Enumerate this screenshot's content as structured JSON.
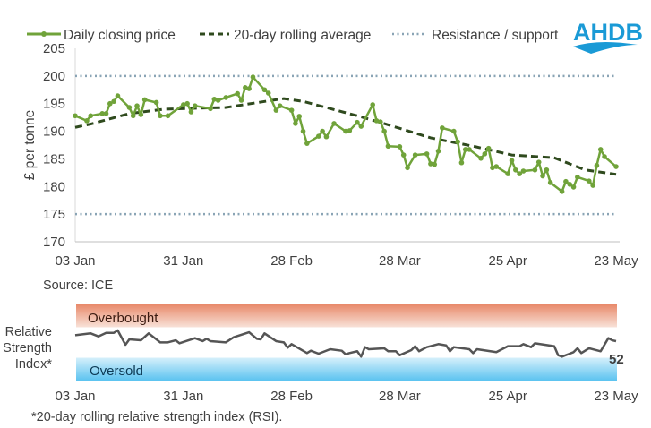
{
  "logo": {
    "text": "AHDB",
    "color": "#1a9ad6"
  },
  "source": "Source: ICE",
  "footnote": "*20-day rolling relative strength index (RSI).",
  "colors": {
    "price": "#70a33a",
    "average": "#2f4a1e",
    "levels": "#8aa4b5",
    "rsi": "#555555",
    "overbought": "#e8896a",
    "oversold": "#5cc3f0"
  },
  "chart_data": [
    {
      "type": "line",
      "ylabel": "£ per tonne",
      "ylim": [
        170,
        205
      ],
      "yticks": [
        "170",
        "175",
        "180",
        "185",
        "190",
        "195",
        "200",
        "205"
      ],
      "xticks": [
        "03 Jan",
        "31 Jan",
        "28 Feb",
        "28 Mar",
        "25 Apr",
        "23 May"
      ],
      "legend": {
        "placement": "top",
        "entries": [
          "Daily closing price",
          "20-day rolling average",
          "Resistance / support"
        ]
      },
      "levels": {
        "resistance": 200,
        "support": 175
      },
      "series": [
        {
          "name": "Daily closing price",
          "style": "line-markers",
          "points": [
            [
              "03 Jan",
              192.8
            ],
            [
              "06 Jan",
              191.9
            ],
            [
              "07 Jan",
              192.8
            ],
            [
              "10 Jan",
              193.2
            ],
            [
              "11 Jan",
              193.2
            ],
            [
              "12 Jan",
              195.0
            ],
            [
              "13 Jan",
              195.4
            ],
            [
              "14 Jan",
              196.4
            ],
            [
              "17 Jan",
              194.3
            ],
            [
              "18 Jan",
              192.8
            ],
            [
              "19 Jan",
              194.6
            ],
            [
              "20 Jan",
              193.0
            ],
            [
              "21 Jan",
              195.7
            ],
            [
              "24 Jan",
              195.2
            ],
            [
              "25 Jan",
              192.8
            ],
            [
              "27 Jan",
              192.8
            ],
            [
              "31 Jan",
              194.8
            ],
            [
              "01 Feb",
              195.0
            ],
            [
              "02 Feb",
              193.5
            ],
            [
              "03 Feb",
              194.6
            ],
            [
              "07 Feb",
              194.1
            ],
            [
              "08 Feb",
              195.8
            ],
            [
              "09 Feb",
              195.6
            ],
            [
              "11 Feb",
              196.1
            ],
            [
              "14 Feb",
              196.8
            ],
            [
              "15 Feb",
              195.6
            ],
            [
              "16 Feb",
              197.9
            ],
            [
              "17 Feb",
              197.7
            ],
            [
              "18 Feb",
              199.8
            ],
            [
              "21 Feb",
              197.5
            ],
            [
              "22 Feb",
              196.9
            ],
            [
              "24 Feb",
              193.8
            ],
            [
              "25 Feb",
              194.6
            ],
            [
              "28 Feb",
              193.8
            ],
            [
              "01 Mar",
              191.4
            ],
            [
              "02 Mar",
              192.7
            ],
            [
              "03 Mar",
              190.0
            ],
            [
              "04 Mar",
              187.8
            ],
            [
              "07 Mar",
              189.1
            ],
            [
              "08 Mar",
              190.0
            ],
            [
              "09 Mar",
              189.0
            ],
            [
              "11 Mar",
              191.4
            ],
            [
              "14 Mar",
              190.0
            ],
            [
              "15 Mar",
              190.1
            ],
            [
              "17 Mar",
              191.6
            ],
            [
              "18 Mar",
              190.9
            ],
            [
              "21 Mar",
              194.8
            ],
            [
              "22 Mar",
              191.9
            ],
            [
              "23 Mar",
              191.7
            ],
            [
              "24 Mar",
              190.0
            ],
            [
              "25 Mar",
              187.3
            ],
            [
              "28 Mar",
              187.2
            ],
            [
              "29 Mar",
              185.7
            ],
            [
              "30 Mar",
              183.4
            ],
            [
              "01 Apr",
              185.7
            ],
            [
              "04 Apr",
              185.9
            ],
            [
              "05 Apr",
              184.1
            ],
            [
              "06 Apr",
              184.0
            ],
            [
              "07 Apr",
              186.4
            ],
            [
              "08 Apr",
              190.6
            ],
            [
              "11 Apr",
              190.0
            ],
            [
              "12 Apr",
              188.1
            ],
            [
              "13 Apr",
              184.3
            ],
            [
              "14 Apr",
              186.7
            ],
            [
              "15 Apr",
              186.7
            ],
            [
              "18 Apr",
              185.1
            ],
            [
              "19 Apr",
              185.9
            ],
            [
              "20 Apr",
              186.9
            ],
            [
              "21 Apr",
              183.4
            ],
            [
              "22 Apr",
              183.6
            ],
            [
              "25 Apr",
              182.3
            ],
            [
              "26 Apr",
              184.7
            ],
            [
              "27 Apr",
              183.0
            ],
            [
              "28 Apr",
              182.3
            ],
            [
              "29 Apr",
              182.8
            ],
            [
              "02 May",
              183.0
            ],
            [
              "03 May",
              184.4
            ],
            [
              "04 May",
              181.9
            ],
            [
              "05 May",
              183.0
            ],
            [
              "06 May",
              180.7
            ],
            [
              "09 May",
              179.1
            ],
            [
              "10 May",
              180.9
            ],
            [
              "11 May",
              180.4
            ],
            [
              "12 May",
              179.9
            ],
            [
              "13 May",
              181.7
            ],
            [
              "16 May",
              181.0
            ],
            [
              "17 May",
              180.2
            ],
            [
              "18 May",
              183.8
            ],
            [
              "19 May",
              186.7
            ],
            [
              "20 May",
              185.4
            ],
            [
              "23 May",
              183.6
            ]
          ]
        },
        {
          "name": "20-day rolling average",
          "style": "dashed",
          "points": [
            [
              "03 Jan",
              190.7
            ],
            [
              "07 Jan",
              191.3
            ],
            [
              "17 Jan",
              193.2
            ],
            [
              "26 Jan",
              194.0
            ],
            [
              "11 Feb",
              194.3
            ],
            [
              "23 Feb",
              195.6
            ],
            [
              "26 Feb",
              195.9
            ],
            [
              "03 Mar",
              195.4
            ],
            [
              "17 Mar",
              192.8
            ],
            [
              "23 Mar",
              191.6
            ],
            [
              "05 Apr",
              188.8
            ],
            [
              "16 Apr",
              187.3
            ],
            [
              "26 Apr",
              185.7
            ],
            [
              "07 May",
              185.2
            ],
            [
              "15 May",
              183.0
            ],
            [
              "23 May",
              182.2
            ]
          ]
        }
      ]
    },
    {
      "type": "line",
      "ylabel": "Relative Strength Index*",
      "ylim": [
        0,
        100
      ],
      "bands": [
        {
          "label": "Overbought",
          "from": 70,
          "to": 100
        },
        {
          "label": "Oversold",
          "from": 0,
          "to": 30
        }
      ],
      "xticks": [
        "03 Jan",
        "31 Jan",
        "28 Feb",
        "28 Mar",
        "25 Apr",
        "23 May"
      ],
      "last_value_label": "52",
      "points": [
        [
          "03 Jan",
          59.6
        ],
        [
          "07 Jan",
          62
        ],
        [
          "09 Jan",
          58
        ],
        [
          "11 Jan",
          62.7
        ],
        [
          "13 Jan",
          62.7
        ],
        [
          "14 Jan",
          65.9
        ],
        [
          "16 Jan",
          47
        ],
        [
          "17 Jan",
          54.1
        ],
        [
          "20 Jan",
          52.9
        ],
        [
          "22 Jan",
          62
        ],
        [
          "25 Jan",
          50.2
        ],
        [
          "27 Jan",
          50.2
        ],
        [
          "29 Jan",
          52.9
        ],
        [
          "30 Jan",
          49
        ],
        [
          "03 Feb",
          55.7
        ],
        [
          "05 Feb",
          51.8
        ],
        [
          "06 Feb",
          54.9
        ],
        [
          "07 Feb",
          51.8
        ],
        [
          "11 Feb",
          50.2
        ],
        [
          "13 Feb",
          56.8
        ],
        [
          "17 Feb",
          63.5
        ],
        [
          "19 Feb",
          54.9
        ],
        [
          "20 Feb",
          54.1
        ],
        [
          "21 Feb",
          62
        ],
        [
          "24 Feb",
          51.8
        ],
        [
          "26 Feb",
          50.2
        ],
        [
          "27 Feb",
          43.2
        ],
        [
          "28 Feb",
          47.9
        ],
        [
          "04 Mar",
          36.1
        ],
        [
          "05 Mar",
          39.2
        ],
        [
          "07 Mar",
          35.3
        ],
        [
          "10 Mar",
          41.2
        ],
        [
          "13 Mar",
          39.2
        ],
        [
          "14 Mar",
          34.5
        ],
        [
          "15 Mar",
          36.1
        ],
        [
          "17 Mar",
          38.5
        ],
        [
          "18 Mar",
          31.4
        ],
        [
          "19 Mar",
          43.9
        ],
        [
          "20 Mar",
          41.2
        ],
        [
          "24 Mar",
          42.4
        ],
        [
          "25 Mar",
          38.5
        ],
        [
          "27 Mar",
          38.5
        ],
        [
          "28 Mar",
          33.3
        ],
        [
          "31 Mar",
          40
        ],
        [
          "01 Apr",
          45.1
        ],
        [
          "02 Apr",
          38.5
        ],
        [
          "04 Apr",
          43.9
        ],
        [
          "07 Apr",
          47.9
        ],
        [
          "09 Apr",
          46.2
        ],
        [
          "10 Apr",
          38.5
        ],
        [
          "11 Apr",
          43.9
        ],
        [
          "15 Apr",
          41.2
        ],
        [
          "16 Apr",
          36.1
        ],
        [
          "17 Apr",
          41.2
        ],
        [
          "22 Apr",
          37.3
        ],
        [
          "25 Apr",
          45.1
        ],
        [
          "28 Apr",
          45.1
        ],
        [
          "29 Apr",
          47.9
        ],
        [
          "01 May",
          43.9
        ],
        [
          "02 May",
          49
        ],
        [
          "07 May",
          45.1
        ],
        [
          "08 May",
          33.3
        ],
        [
          "09 May",
          31.4
        ],
        [
          "12 May",
          37.3
        ],
        [
          "13 May",
          42.4
        ],
        [
          "14 May",
          36.1
        ],
        [
          "16 May",
          42.4
        ],
        [
          "19 May",
          38.5
        ],
        [
          "21 May",
          55.7
        ],
        [
          "22 May",
          52.9
        ],
        [
          "23 May",
          51.8
        ]
      ]
    }
  ]
}
